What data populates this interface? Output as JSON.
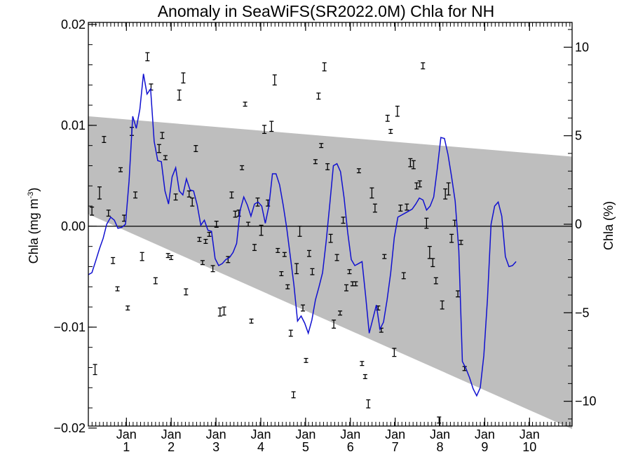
{
  "chart_data": {
    "type": "line",
    "title": "Anomaly in SeaWiFS(SR2022.0M) Chla for NH",
    "ylabel_left": "Chla (mg m",
    "ylabel_left_superscript": "-3",
    "ylabel_left_close": ")",
    "ylabel_right": "Chla (%)",
    "x_range": [
      0.0,
      10.8
    ],
    "ylim_left": [
      -0.0198,
      0.0202
    ],
    "ylim_right": [
      -11.4,
      11.4
    ],
    "yticks_left": [
      {
        "value": 0.02,
        "label": "0.02"
      },
      {
        "value": 0.01,
        "label": "0.01"
      },
      {
        "value": 0.0,
        "label": "0.00"
      },
      {
        "value": -0.01,
        "label": "−0.01"
      },
      {
        "value": -0.02,
        "label": "−0.02"
      }
    ],
    "yticks_right": [
      {
        "value": 10,
        "label": "10"
      },
      {
        "value": 5,
        "label": "5"
      },
      {
        "value": 0,
        "label": "0"
      },
      {
        "value": -5,
        "label": "−5"
      },
      {
        "value": -10,
        "label": "−10"
      }
    ],
    "xticks": [
      {
        "x": 0.85,
        "month": "Jan",
        "year": "1"
      },
      {
        "x": 1.85,
        "month": "Jan",
        "year": "2"
      },
      {
        "x": 2.85,
        "month": "Jan",
        "year": "3"
      },
      {
        "x": 3.85,
        "month": "Jan",
        "year": "4"
      },
      {
        "x": 4.85,
        "month": "Jan",
        "year": "5"
      },
      {
        "x": 5.85,
        "month": "Jan",
        "year": "6"
      },
      {
        "x": 6.85,
        "month": "Jan",
        "year": "7"
      },
      {
        "x": 7.85,
        "month": "Jan",
        "year": "8"
      },
      {
        "x": 8.85,
        "month": "Jan",
        "year": "9"
      },
      {
        "x": 9.85,
        "month": "Jan",
        "year": "10"
      }
    ],
    "envelope": {
      "color": "#bebebe",
      "upper": [
        [
          0.0,
          0.0109
        ],
        [
          10.8,
          0.0069
        ]
      ],
      "lower": [
        [
          0.0,
          0.0012
        ],
        [
          10.8,
          -0.0201
        ]
      ]
    },
    "zero_line": 0.0,
    "series": [
      {
        "name": "",
        "color": "#1010d0",
        "points": [
          [
            0.0,
            -0.0048
          ],
          [
            0.08,
            -0.0046
          ],
          [
            0.16,
            -0.0035
          ],
          [
            0.25,
            -0.0022
          ],
          [
            0.33,
            -0.0012
          ],
          [
            0.41,
            0.0002
          ],
          [
            0.5,
            0.0009
          ],
          [
            0.58,
            0.0006
          ],
          [
            0.66,
            -0.0002
          ],
          [
            0.75,
            -0.0001
          ],
          [
            0.83,
            0.0002
          ],
          [
            0.91,
            0.0045
          ],
          [
            0.99,
            0.0109
          ],
          [
            1.07,
            0.0097
          ],
          [
            1.15,
            0.0116
          ],
          [
            1.23,
            0.0151
          ],
          [
            1.31,
            0.0131
          ],
          [
            1.39,
            0.0136
          ],
          [
            1.47,
            0.0084
          ],
          [
            1.55,
            0.0065
          ],
          [
            1.63,
            0.0064
          ],
          [
            1.71,
            0.0035
          ],
          [
            1.79,
            0.0022
          ],
          [
            1.87,
            0.0049
          ],
          [
            1.95,
            0.0058
          ],
          [
            2.03,
            0.0035
          ],
          [
            2.11,
            0.0031
          ],
          [
            2.19,
            0.0047
          ],
          [
            2.27,
            0.0036
          ],
          [
            2.35,
            0.0035
          ],
          [
            2.43,
            0.0021
          ],
          [
            2.51,
            0.0001
          ],
          [
            2.59,
            0.0006
          ],
          [
            2.67,
            -0.0004
          ],
          [
            2.75,
            -0.0005
          ],
          [
            2.83,
            -0.0032
          ],
          [
            2.91,
            -0.0039
          ],
          [
            2.99,
            -0.0037
          ],
          [
            3.07,
            -0.0033
          ],
          [
            3.15,
            -0.0031
          ],
          [
            3.23,
            -0.0026
          ],
          [
            3.31,
            -0.0017
          ],
          [
            3.39,
            0.0016
          ],
          [
            3.47,
            0.0029
          ],
          [
            3.55,
            0.0021
          ],
          [
            3.63,
            0.001
          ],
          [
            3.71,
            0.0022
          ],
          [
            3.79,
            0.0024
          ],
          [
            3.87,
            0.002
          ],
          [
            3.95,
            0.0003
          ],
          [
            4.03,
            0.002
          ],
          [
            4.11,
            0.0052
          ],
          [
            4.19,
            0.0052
          ],
          [
            4.27,
            0.0041
          ],
          [
            4.35,
            0.0021
          ],
          [
            4.43,
            -0.0002
          ],
          [
            4.51,
            -0.003
          ],
          [
            4.59,
            -0.0058
          ],
          [
            4.67,
            -0.0094
          ],
          [
            4.75,
            -0.0089
          ],
          [
            4.83,
            -0.0096
          ],
          [
            4.91,
            -0.0106
          ],
          [
            4.99,
            -0.0093
          ],
          [
            5.07,
            -0.0073
          ],
          [
            5.15,
            -0.006
          ],
          [
            5.23,
            -0.0046
          ],
          [
            5.31,
            -0.0015
          ],
          [
            5.39,
            0.0022
          ],
          [
            5.47,
            0.006
          ],
          [
            5.55,
            0.0062
          ],
          [
            5.63,
            0.0054
          ],
          [
            5.71,
            0.0028
          ],
          [
            5.79,
            -0.0006
          ],
          [
            5.87,
            -0.0033
          ],
          [
            5.95,
            -0.0039
          ],
          [
            6.03,
            -0.0037
          ],
          [
            6.11,
            -0.0035
          ],
          [
            6.19,
            -0.0069
          ],
          [
            6.27,
            -0.0106
          ],
          [
            6.35,
            -0.0092
          ],
          [
            6.43,
            -0.0078
          ],
          [
            6.51,
            -0.0102
          ],
          [
            6.59,
            -0.0095
          ],
          [
            6.67,
            -0.0073
          ],
          [
            6.75,
            -0.0046
          ],
          [
            6.83,
            -0.0011
          ],
          [
            6.91,
            0.0009
          ],
          [
            6.99,
            0.0011
          ],
          [
            7.07,
            0.0013
          ],
          [
            7.15,
            0.0015
          ],
          [
            7.23,
            0.0017
          ],
          [
            7.31,
            0.0022
          ],
          [
            7.39,
            0.0028
          ],
          [
            7.47,
            0.0026
          ],
          [
            7.55,
            0.0016
          ],
          [
            7.63,
            0.002
          ],
          [
            7.71,
            0.0029
          ],
          [
            7.79,
            0.0057
          ],
          [
            7.87,
            0.0088
          ],
          [
            7.95,
            0.0087
          ],
          [
            8.03,
            0.0071
          ],
          [
            8.11,
            0.0049
          ],
          [
            8.19,
            0.0025
          ],
          [
            8.27,
            -0.0024
          ],
          [
            8.35,
            -0.0134
          ],
          [
            8.43,
            -0.0141
          ],
          [
            8.51,
            -0.015
          ],
          [
            8.59,
            -0.0161
          ],
          [
            8.67,
            -0.0168
          ],
          [
            8.75,
            -0.016
          ],
          [
            8.83,
            -0.0128
          ],
          [
            8.91,
            -0.0072
          ],
          [
            8.99,
            0.0002
          ],
          [
            9.07,
            0.002
          ],
          [
            9.15,
            0.0024
          ],
          [
            9.23,
            0.001
          ],
          [
            9.31,
            -0.003
          ],
          [
            9.39,
            -0.004
          ],
          [
            9.47,
            -0.0039
          ],
          [
            9.55,
            -0.0035
          ]
        ]
      }
    ],
    "monthly_points": [
      {
        "x": 0.08,
        "y": 0.0015,
        "e": 0.0004
      },
      {
        "x": 0.15,
        "y": -0.0142,
        "e": 0.0005
      },
      {
        "x": 0.25,
        "y": 0.0033,
        "e": 0.0006
      },
      {
        "x": 0.35,
        "y": 0.0086,
        "e": 0.0003
      },
      {
        "x": 0.45,
        "y": 0.0013,
        "e": 0.0003
      },
      {
        "x": 0.55,
        "y": -0.0034,
        "e": 0.0003
      },
      {
        "x": 0.65,
        "y": -0.0062,
        "e": 0.0002
      },
      {
        "x": 0.72,
        "y": 0.0056,
        "e": 0.0002
      },
      {
        "x": 0.8,
        "y": 0.0008,
        "e": 0.0003
      },
      {
        "x": 0.88,
        "y": -0.0081,
        "e": 0.0002
      },
      {
        "x": 0.97,
        "y": 0.0094,
        "e": 0.0004
      },
      {
        "x": 1.05,
        "y": 0.0031,
        "e": 0.0003
      },
      {
        "x": 1.2,
        "y": -0.003,
        "e": 0.0004
      },
      {
        "x": 1.32,
        "y": 0.0168,
        "e": 0.0004
      },
      {
        "x": 1.4,
        "y": 0.0138,
        "e": 0.0003
      },
      {
        "x": 1.5,
        "y": -0.0054,
        "e": 0.0003
      },
      {
        "x": 1.58,
        "y": 0.0077,
        "e": 0.0004
      },
      {
        "x": 1.65,
        "y": 0.009,
        "e": 0.0003
      },
      {
        "x": 1.72,
        "y": 0.0068,
        "e": 0.0002
      },
      {
        "x": 1.78,
        "y": -0.0029,
        "e": 0.0002
      },
      {
        "x": 1.85,
        "y": -0.0031,
        "e": 0.0002
      },
      {
        "x": 1.95,
        "y": 0.0029,
        "e": 0.0003
      },
      {
        "x": 2.03,
        "y": 0.013,
        "e": 0.0005
      },
      {
        "x": 2.12,
        "y": 0.0147,
        "e": 0.0005
      },
      {
        "x": 2.18,
        "y": -0.0065,
        "e": 0.0003
      },
      {
        "x": 2.25,
        "y": 0.0032,
        "e": 0.0003
      },
      {
        "x": 2.32,
        "y": 0.0024,
        "e": 0.0004
      },
      {
        "x": 2.4,
        "y": 0.0077,
        "e": 0.0003
      },
      {
        "x": 2.48,
        "y": -0.0013,
        "e": 0.0002
      },
      {
        "x": 2.55,
        "y": -0.0036,
        "e": 0.0002
      },
      {
        "x": 2.62,
        "y": -0.0015,
        "e": 0.0002
      },
      {
        "x": 2.7,
        "y": -0.0008,
        "e": 0.0002
      },
      {
        "x": 2.78,
        "y": -0.0042,
        "e": 0.0003
      },
      {
        "x": 2.86,
        "y": 0.0002,
        "e": 0.0003
      },
      {
        "x": 2.94,
        "y": -0.0085,
        "e": 0.0004
      },
      {
        "x": 3.03,
        "y": -0.0084,
        "e": 0.0004
      },
      {
        "x": 3.12,
        "y": -0.0033,
        "e": 0.0003
      },
      {
        "x": 3.2,
        "y": 0.0031,
        "e": 0.0003
      },
      {
        "x": 3.28,
        "y": 0.0012,
        "e": 0.0003
      },
      {
        "x": 3.36,
        "y": 0.0013,
        "e": 0.0003
      },
      {
        "x": 3.43,
        "y": 0.0058,
        "e": 0.0002
      },
      {
        "x": 3.5,
        "y": 0.0121,
        "e": 0.0002
      },
      {
        "x": 3.57,
        "y": 0.0002,
        "e": 0.0002
      },
      {
        "x": 3.64,
        "y": -0.0094,
        "e": 0.0002
      },
      {
        "x": 3.71,
        "y": -0.0021,
        "e": 0.0003
      },
      {
        "x": 3.78,
        "y": 0.0024,
        "e": 0.0004
      },
      {
        "x": 3.86,
        "y": -0.0004,
        "e": 0.0005
      },
      {
        "x": 3.93,
        "y": 0.0096,
        "e": 0.0004
      },
      {
        "x": 4.01,
        "y": 0.0023,
        "e": 0.0003
      },
      {
        "x": 4.09,
        "y": 0.0099,
        "e": 0.0005
      },
      {
        "x": 4.16,
        "y": 0.0145,
        "e": 0.0005
      },
      {
        "x": 4.23,
        "y": -0.0024,
        "e": 0.0002
      },
      {
        "x": 4.31,
        "y": -0.0047,
        "e": 0.0002
      },
      {
        "x": 4.38,
        "y": -0.0028,
        "e": 0.0002
      },
      {
        "x": 4.45,
        "y": -0.006,
        "e": 0.0002
      },
      {
        "x": 4.52,
        "y": -0.0106,
        "e": 0.0003
      },
      {
        "x": 4.58,
        "y": -0.0167,
        "e": 0.0003
      },
      {
        "x": 4.65,
        "y": -0.0042,
        "e": 0.0005
      },
      {
        "x": 4.72,
        "y": -0.0005,
        "e": 0.0005
      },
      {
        "x": 4.79,
        "y": -0.0081,
        "e": 0.0003
      },
      {
        "x": 4.86,
        "y": -0.0133,
        "e": 0.0002
      },
      {
        "x": 4.93,
        "y": -0.0027,
        "e": 0.0003
      },
      {
        "x": 5.0,
        "y": -0.0045,
        "e": 0.0003
      },
      {
        "x": 5.07,
        "y": 0.0064,
        "e": 0.0002
      },
      {
        "x": 5.14,
        "y": 0.0129,
        "e": 0.0003
      },
      {
        "x": 5.2,
        "y": 0.008,
        "e": 0.0002
      },
      {
        "x": 5.27,
        "y": 0.0158,
        "e": 0.0004
      },
      {
        "x": 5.34,
        "y": 0.0059,
        "e": 0.0003
      },
      {
        "x": 5.41,
        "y": -0.0012,
        "e": 0.0004
      },
      {
        "x": 5.48,
        "y": -0.0097,
        "e": 0.0004
      },
      {
        "x": 5.55,
        "y": -0.0031,
        "e": 0.0003
      },
      {
        "x": 5.62,
        "y": -0.0086,
        "e": 0.0002
      },
      {
        "x": 5.69,
        "y": 0.0006,
        "e": 0.0003
      },
      {
        "x": 5.76,
        "y": -0.0061,
        "e": 0.0003
      },
      {
        "x": 5.83,
        "y": -0.0045,
        "e": 0.0002
      },
      {
        "x": 5.9,
        "y": -0.0057,
        "e": 0.0002
      },
      {
        "x": 5.97,
        "y": -0.0057,
        "e": 0.0002
      },
      {
        "x": 6.04,
        "y": 0.0055,
        "e": 0.0002
      },
      {
        "x": 6.11,
        "y": -0.0136,
        "e": 0.0002
      },
      {
        "x": 6.18,
        "y": -0.0149,
        "e": 0.0002
      },
      {
        "x": 6.25,
        "y": -0.0176,
        "e": 0.0004
      },
      {
        "x": 6.33,
        "y": 0.0033,
        "e": 0.0005
      },
      {
        "x": 6.4,
        "y": 0.0018,
        "e": 0.0004
      },
      {
        "x": 6.47,
        "y": -0.0081,
        "e": 0.0002
      },
      {
        "x": 6.54,
        "y": -0.0103,
        "e": 0.0002
      },
      {
        "x": 6.61,
        "y": -0.003,
        "e": 0.0002
      },
      {
        "x": 6.68,
        "y": 0.0107,
        "e": 0.0003
      },
      {
        "x": 6.75,
        "y": 0.0094,
        "e": 0.0002
      },
      {
        "x": 6.83,
        "y": -0.0125,
        "e": 0.0004
      },
      {
        "x": 6.9,
        "y": 0.0114,
        "e": 0.0005
      },
      {
        "x": 6.97,
        "y": 0.0018,
        "e": 0.0003
      },
      {
        "x": 7.04,
        "y": -0.0049,
        "e": 0.0003
      },
      {
        "x": 7.11,
        "y": 0.0019,
        "e": 0.0003
      },
      {
        "x": 7.19,
        "y": 0.0063,
        "e": 0.0004
      },
      {
        "x": 7.26,
        "y": 0.0061,
        "e": 0.0004
      },
      {
        "x": 7.33,
        "y": 0.004,
        "e": 0.0003
      },
      {
        "x": 7.4,
        "y": 0.0042,
        "e": 0.0003
      },
      {
        "x": 7.47,
        "y": 0.0159,
        "e": 0.0003
      },
      {
        "x": 7.55,
        "y": 0.0003,
        "e": 0.0005
      },
      {
        "x": 7.62,
        "y": -0.0026,
        "e": 0.0006
      },
      {
        "x": 7.69,
        "y": -0.0036,
        "e": 0.0004
      },
      {
        "x": 7.76,
        "y": -0.0054,
        "e": 0.0003
      },
      {
        "x": 7.83,
        "y": -0.0192,
        "e": 0.0003
      },
      {
        "x": 7.9,
        "y": -0.0078,
        "e": 0.0004
      },
      {
        "x": 7.97,
        "y": 0.0032,
        "e": 0.0005
      },
      {
        "x": 8.04,
        "y": 0.0037,
        "e": 0.0006
      },
      {
        "x": 8.11,
        "y": -0.0012,
        "e": 0.0004
      },
      {
        "x": 8.18,
        "y": 0.0003,
        "e": 0.0003
      },
      {
        "x": 8.25,
        "y": -0.0067,
        "e": 0.0003
      },
      {
        "x": 8.32,
        "y": -0.0016,
        "e": 0.0002
      },
      {
        "x": 8.4,
        "y": -0.0141,
        "e": 0.0002
      }
    ]
  }
}
